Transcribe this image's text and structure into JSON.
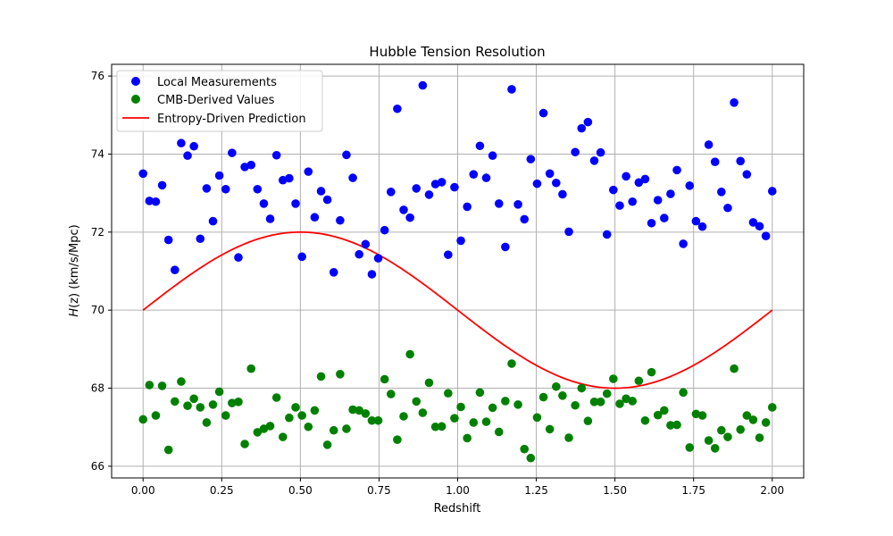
{
  "chart_data": {
    "type": "scatter",
    "title": "Hubble Tension Resolution",
    "xlabel": "Redshift",
    "ylabel_italic": "H",
    "ylabel_rest": "(z) (km/s/Mpc)",
    "xlim": [
      -0.1,
      2.1
    ],
    "ylim": [
      65.7,
      76.3
    ],
    "xticks": [
      0.0,
      0.25,
      0.5,
      0.75,
      1.0,
      1.25,
      1.5,
      1.75,
      2.0
    ],
    "xtick_labels": [
      "0.00",
      "0.25",
      "0.50",
      "0.75",
      "1.00",
      "1.25",
      "1.50",
      "1.75",
      "2.00"
    ],
    "yticks": [
      66,
      68,
      70,
      72,
      74,
      76
    ],
    "ytick_labels": [
      "66",
      "68",
      "70",
      "72",
      "74",
      "76"
    ],
    "grid": true,
    "legend_position": "top-left",
    "x": [
      0.0,
      0.0202,
      0.0404,
      0.0606,
      0.0808,
      0.101,
      0.1212,
      0.1414,
      0.1616,
      0.1818,
      0.202,
      0.2222,
      0.2424,
      0.2626,
      0.2828,
      0.303,
      0.3232,
      0.3434,
      0.3636,
      0.3838,
      0.404,
      0.4242,
      0.4444,
      0.4646,
      0.4848,
      0.5051,
      0.5253,
      0.5455,
      0.5657,
      0.5859,
      0.6061,
      0.6263,
      0.6465,
      0.6667,
      0.6869,
      0.7071,
      0.7273,
      0.7475,
      0.7677,
      0.7879,
      0.8081,
      0.8283,
      0.8485,
      0.8687,
      0.8889,
      0.9091,
      0.9293,
      0.9495,
      0.9697,
      0.9899,
      1.0101,
      1.0303,
      1.0505,
      1.0707,
      1.0909,
      1.1111,
      1.1313,
      1.1515,
      1.1717,
      1.1919,
      1.2121,
      1.2323,
      1.2525,
      1.2727,
      1.2929,
      1.3131,
      1.3333,
      1.3535,
      1.3737,
      1.3939,
      1.4141,
      1.4343,
      1.4545,
      1.4747,
      1.4949,
      1.5152,
      1.5354,
      1.5556,
      1.5758,
      1.596,
      1.6162,
      1.6364,
      1.6566,
      1.6768,
      1.697,
      1.7172,
      1.7374,
      1.7576,
      1.7778,
      1.798,
      1.8182,
      1.8384,
      1.8586,
      1.8788,
      1.899,
      1.9192,
      1.9394,
      1.9596,
      1.9798,
      2.0
    ],
    "series": [
      {
        "name": "Local Measurements",
        "kind": "scatter",
        "color": "#0000ff",
        "y": [
          73.5,
          72.8,
          72.78,
          73.2,
          71.8,
          71.03,
          74.28,
          73.96,
          74.2,
          71.83,
          73.12,
          72.28,
          73.45,
          73.1,
          74.03,
          71.35,
          73.67,
          73.72,
          73.1,
          72.73,
          72.34,
          73.97,
          73.33,
          73.38,
          72.73,
          71.37,
          73.55,
          72.38,
          73.05,
          72.83,
          70.97,
          72.3,
          73.98,
          73.39,
          71.43,
          71.69,
          70.92,
          71.33,
          72.05,
          73.03,
          75.16,
          72.57,
          72.37,
          73.12,
          75.76,
          72.96,
          73.23,
          73.28,
          71.42,
          73.15,
          71.78,
          72.65,
          73.48,
          74.21,
          73.39,
          73.96,
          72.73,
          71.62,
          75.66,
          72.71,
          72.33,
          73.87,
          73.24,
          75.05,
          73.5,
          73.26,
          72.97,
          72.01,
          74.05,
          74.66,
          74.82,
          73.83,
          74.04,
          71.94,
          73.08,
          72.68,
          73.43,
          72.78,
          73.27,
          73.36,
          72.23,
          72.82,
          72.36,
          72.98,
          73.59,
          71.7,
          73.19,
          72.28,
          72.14,
          74.24,
          73.8,
          73.03,
          72.62,
          75.32,
          73.82,
          73.48,
          72.25,
          72.15,
          71.9,
          73.05
        ]
      },
      {
        "name": "CMB-Derived Values",
        "kind": "scatter",
        "color": "#008000",
        "y": [
          67.2,
          68.08,
          67.3,
          68.06,
          66.42,
          67.66,
          68.17,
          67.55,
          67.73,
          67.51,
          67.12,
          67.58,
          67.91,
          67.3,
          67.62,
          67.65,
          66.57,
          68.5,
          66.87,
          66.96,
          67.03,
          67.76,
          66.75,
          67.24,
          67.51,
          67.3,
          67.01,
          67.43,
          68.3,
          66.55,
          66.92,
          68.36,
          66.96,
          67.45,
          67.43,
          67.35,
          67.17,
          67.17,
          68.23,
          67.85,
          66.68,
          67.28,
          68.87,
          67.66,
          67.37,
          68.14,
          67.01,
          67.02,
          67.87,
          67.23,
          67.52,
          66.72,
          67.12,
          67.89,
          67.14,
          67.5,
          66.88,
          67.67,
          68.63,
          67.58,
          66.44,
          66.21,
          67.25,
          67.77,
          66.95,
          68.04,
          67.81,
          66.73,
          67.56,
          68.0,
          67.16,
          67.65,
          67.65,
          67.86,
          68.24,
          67.6,
          67.73,
          67.67,
          68.19,
          67.17,
          68.41,
          67.31,
          67.43,
          67.05,
          67.06,
          67.89,
          66.48,
          67.34,
          67.3,
          66.66,
          66.46,
          66.92,
          66.75,
          68.5,
          66.94,
          67.3,
          67.19,
          66.73,
          67.12,
          67.51
        ]
      },
      {
        "name": "Entropy-Driven Prediction",
        "kind": "line",
        "color": "#ff0000",
        "model": "70 + 2*sin(pi*z)"
      }
    ]
  }
}
